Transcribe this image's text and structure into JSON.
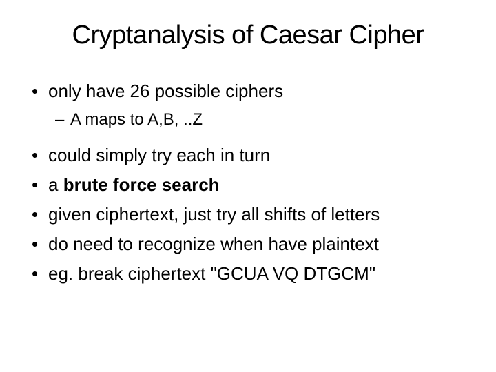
{
  "slide": {
    "title": "Cryptanalysis of Caesar Cipher",
    "bullets": [
      {
        "text": "only have 26 possible ciphers",
        "sub": "A maps to A,B, ..Z"
      },
      {
        "text": "could simply try each in turn"
      },
      {
        "text_prefix": "a ",
        "text_bold": "brute force search"
      },
      {
        "text": "given ciphertext, just try all shifts of letters"
      },
      {
        "text": "do need to recognize when have plaintext"
      },
      {
        "text": "eg. break ciphertext \"GCUA VQ DTGCM\""
      }
    ]
  },
  "style": {
    "background_color": "#ffffff",
    "text_color": "#000000",
    "title_fontsize": 38,
    "bullet_fontsize": 26,
    "sub_fontsize": 24,
    "font_family": "Arial"
  }
}
